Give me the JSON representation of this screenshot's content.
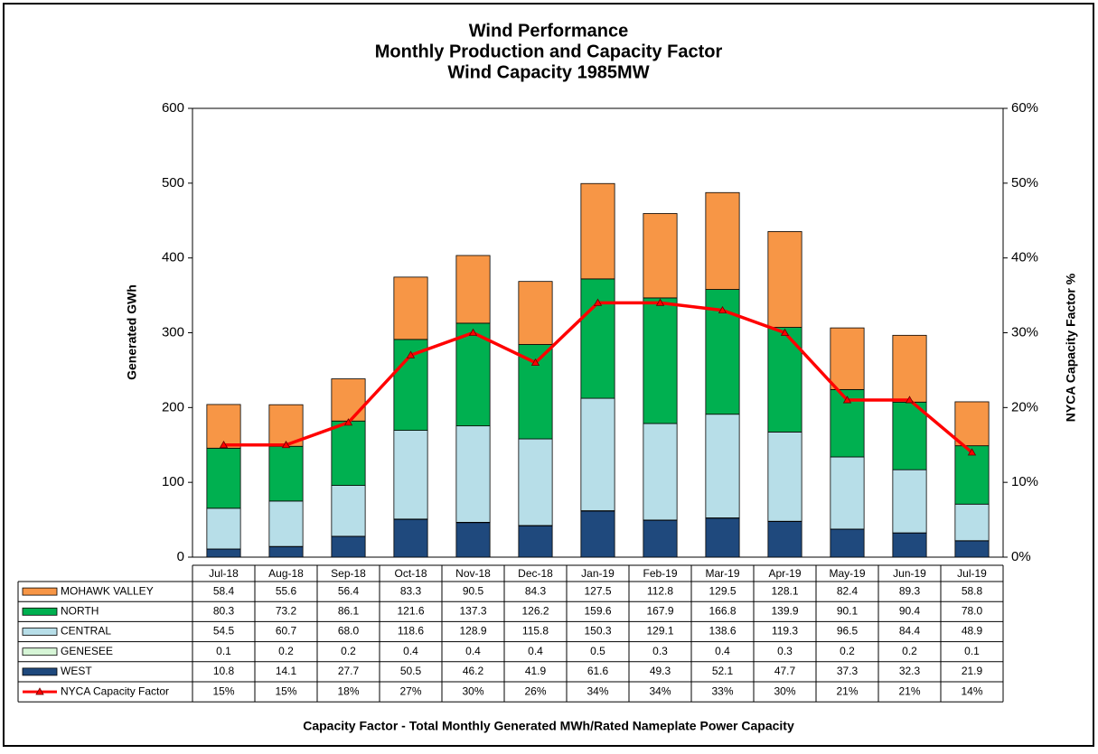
{
  "chart_data": {
    "type": "bar",
    "title": "Wind Performance",
    "subtitle": "Monthly Production and Capacity Factor",
    "subtitle2": "Wind Capacity 1985MW",
    "ylabel": "Generated GWh",
    "y2label": "NYCA  Capacity Factor %",
    "footnote": "Capacity Factor  - Total Monthly Generated MWh/Rated Nameplate Power Capacity",
    "stacked": true,
    "categories": [
      "Jul-18",
      "Aug-18",
      "Sep-18",
      "Oct-18",
      "Nov-18",
      "Dec-18",
      "Jan-19",
      "Feb-19",
      "Mar-19",
      "Apr-19",
      "May-19",
      "Jun-19",
      "Jul-19"
    ],
    "ylim": [
      0,
      600
    ],
    "yticks": [
      0,
      100,
      200,
      300,
      400,
      500,
      600
    ],
    "y2lim": [
      0,
      60
    ],
    "y2ticks": [
      {
        "value": 0,
        "label": "0%"
      },
      {
        "value": 10,
        "label": "10%"
      },
      {
        "value": 20,
        "label": "20%"
      },
      {
        "value": 30,
        "label": "30%"
      },
      {
        "value": 40,
        "label": "40%"
      },
      {
        "value": 50,
        "label": "50%"
      },
      {
        "value": 60,
        "label": "60%"
      }
    ],
    "series": [
      {
        "name": "MOHAWK VALLEY",
        "color": "#f79646",
        "values": [
          58.4,
          55.6,
          56.4,
          83.3,
          90.5,
          84.3,
          127.5,
          112.8,
          129.5,
          128.1,
          82.4,
          89.3,
          58.8
        ],
        "value_labels": [
          "58.4",
          "55.6",
          "56.4",
          "83.3",
          "90.5",
          "84.3",
          "127.5",
          "112.8",
          "129.5",
          "128.1",
          "82.4",
          "89.3",
          "58.8"
        ]
      },
      {
        "name": "NORTH",
        "color": "#00b050",
        "values": [
          80.3,
          73.2,
          86.1,
          121.6,
          137.3,
          126.2,
          159.6,
          167.9,
          166.8,
          139.9,
          90.1,
          90.4,
          78.0
        ],
        "value_labels": [
          "80.3",
          "73.2",
          "86.1",
          "121.6",
          "137.3",
          "126.2",
          "159.6",
          "167.9",
          "166.8",
          "139.9",
          "90.1",
          "90.4",
          "78.0"
        ]
      },
      {
        "name": "CENTRAL",
        "color": "#b7dee8",
        "values": [
          54.5,
          60.7,
          68.0,
          118.6,
          128.9,
          115.8,
          150.3,
          129.1,
          138.6,
          119.3,
          96.5,
          84.4,
          48.9
        ],
        "value_labels": [
          "54.5",
          "60.7",
          "68.0",
          "118.6",
          "128.9",
          "115.8",
          "150.3",
          "129.1",
          "138.6",
          "119.3",
          "96.5",
          "84.4",
          "48.9"
        ]
      },
      {
        "name": "GENESEE",
        "color": "#d6f5d6",
        "values": [
          0.1,
          0.2,
          0.2,
          0.4,
          0.4,
          0.4,
          0.5,
          0.3,
          0.4,
          0.3,
          0.2,
          0.2,
          0.1
        ],
        "value_labels": [
          "0.1",
          "0.2",
          "0.2",
          "0.4",
          "0.4",
          "0.4",
          "0.5",
          "0.3",
          "0.4",
          "0.3",
          "0.2",
          "0.2",
          "0.1"
        ]
      },
      {
        "name": "WEST",
        "color": "#1f497d",
        "values": [
          10.8,
          14.1,
          27.7,
          50.5,
          46.2,
          41.9,
          61.6,
          49.3,
          52.1,
          47.7,
          37.3,
          32.3,
          21.9
        ],
        "value_labels": [
          "10.8",
          "14.1",
          "27.7",
          "50.5",
          "46.2",
          "41.9",
          "61.6",
          "49.3",
          "52.1",
          "47.7",
          "37.3",
          "32.3",
          "21.9"
        ]
      },
      {
        "name": "NYCA Capacity Factor",
        "color": "#ff0000",
        "type": "line",
        "axis": "y2",
        "values": [
          15,
          15,
          18,
          27,
          30,
          26,
          34,
          34,
          33,
          30,
          21,
          21,
          14
        ],
        "value_labels": [
          "15%",
          "15%",
          "18%",
          "27%",
          "30%",
          "26%",
          "34%",
          "34%",
          "33%",
          "30%",
          "21%",
          "21%",
          "14%"
        ]
      }
    ]
  }
}
